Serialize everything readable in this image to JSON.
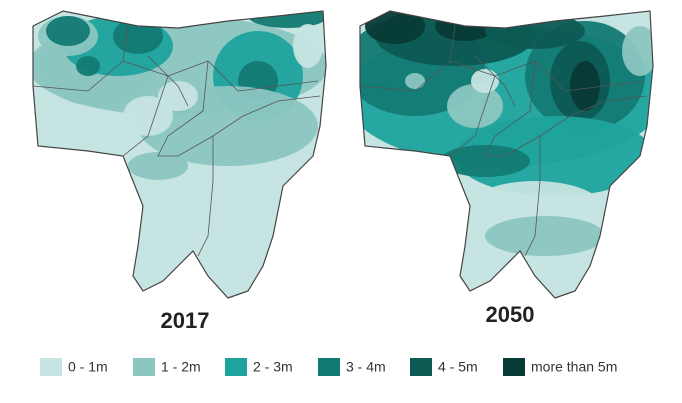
{
  "maps": [
    {
      "title": "2017"
    },
    {
      "title": "2050"
    }
  ],
  "legend": [
    {
      "label": "0 - 1m",
      "color": "#c6e4e1"
    },
    {
      "label": "1 - 2m",
      "color": "#8cc6c1"
    },
    {
      "label": "2 - 3m",
      "color": "#1fa39d"
    },
    {
      "label": "3 - 4m",
      "color": "#137a73"
    },
    {
      "label": "4 - 5m",
      "color": "#0d5a54"
    },
    {
      "label": "more than 5m",
      "color": "#083a36"
    }
  ]
}
